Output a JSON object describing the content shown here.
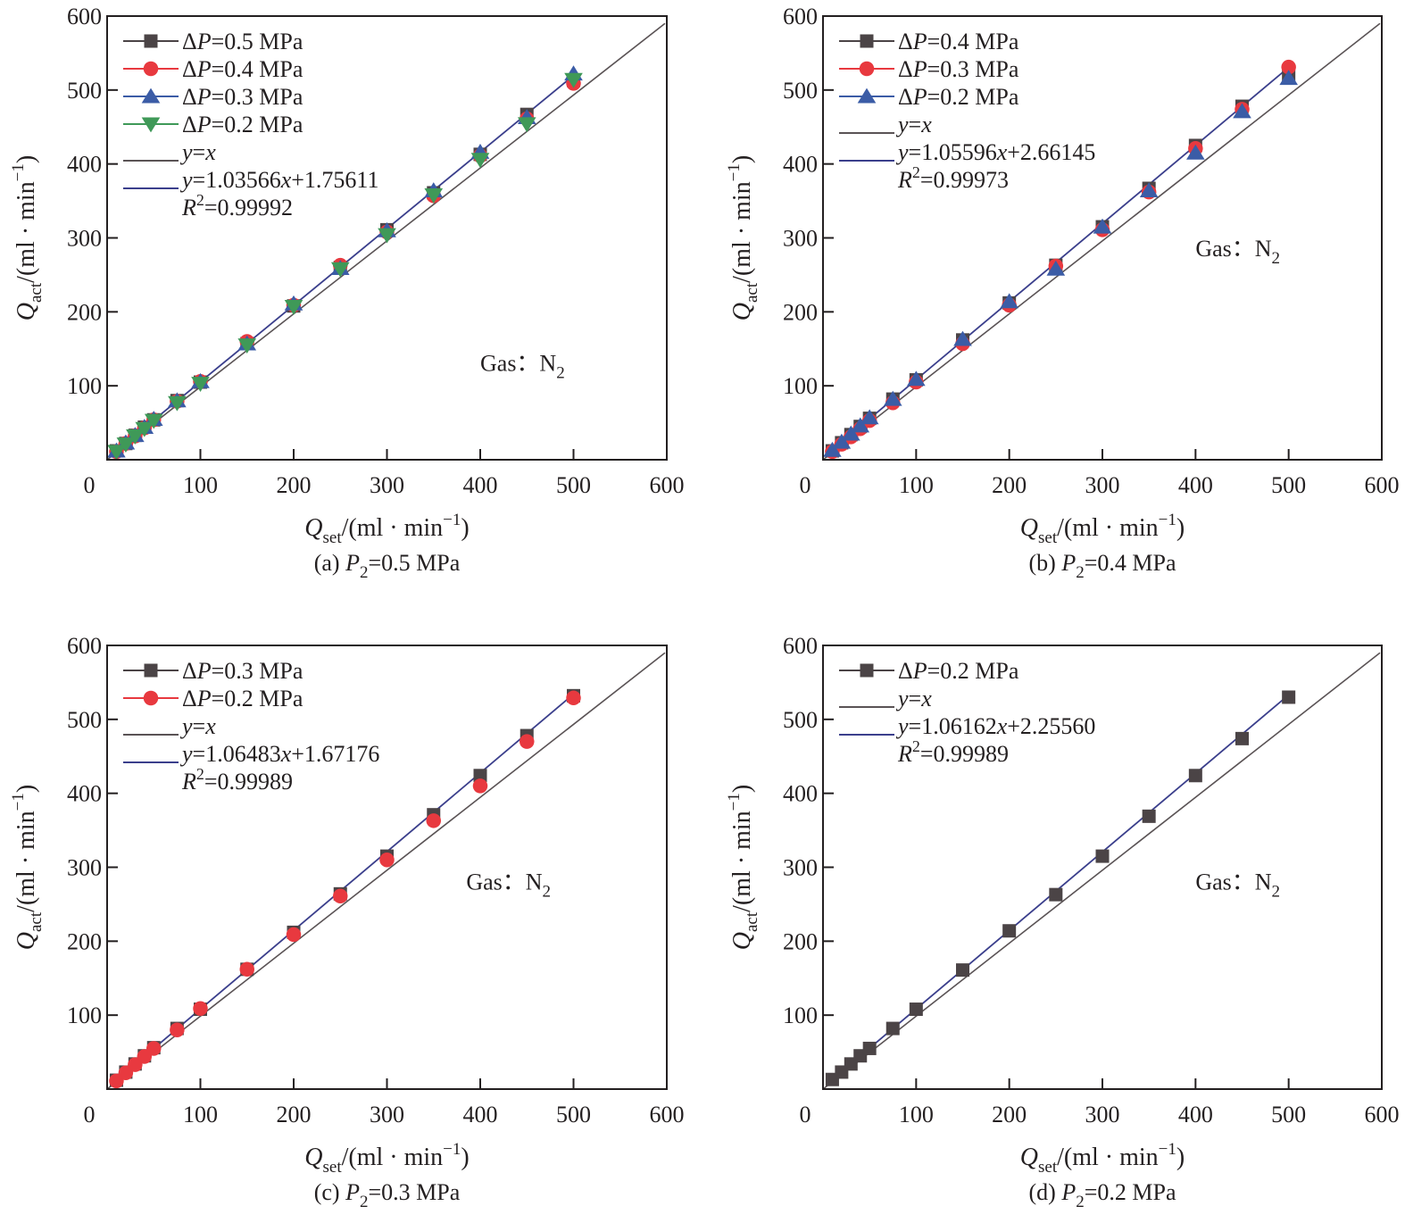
{
  "colors": {
    "series_square": "#4b4446",
    "series_circle": "#e8393f",
    "series_triangle_up": "#3b5ca6",
    "series_triangle_down": "#3f9958",
    "identity_line": "#5a5355",
    "fit_line": "#3b3f8c",
    "axis": "#231f20"
  },
  "chart_data": [
    {
      "type": "scatter",
      "panel": "a",
      "caption": {
        "prefix": "(a) ",
        "var": "P",
        "sub": "2",
        "suffix": "=0.5 MPa"
      },
      "xlabel": {
        "var": "Q",
        "sub": "set",
        "unit": "/(ml · min",
        "sup": "−1",
        "close": ")"
      },
      "ylabel": {
        "var": "Q",
        "sub": "act",
        "unit": "/(ml · min",
        "sup": "−1",
        "close": ")"
      },
      "xlim": [
        0,
        600
      ],
      "ylim": [
        0,
        600
      ],
      "xticks": [
        0,
        100,
        200,
        300,
        400,
        500,
        600
      ],
      "yticks": [
        100,
        200,
        300,
        400,
        500,
        600
      ],
      "grid": false,
      "legend_position": "top-left",
      "annotation": {
        "text": "Gas：N",
        "sub": "2",
        "x": 400,
        "y": 120
      },
      "series": [
        {
          "name": "ΔP=0.5 MPa",
          "marker": "square",
          "x": [
            10,
            20,
            30,
            40,
            50,
            75,
            100,
            150,
            200,
            250,
            300,
            350,
            400,
            450,
            500
          ],
          "y": [
            12,
            22,
            33,
            44,
            54,
            80,
            105,
            157,
            208,
            260,
            311,
            361,
            413,
            467,
            513
          ]
        },
        {
          "name": "ΔP=0.4 MPa",
          "marker": "circle",
          "x": [
            10,
            20,
            30,
            40,
            50,
            75,
            100,
            150,
            200,
            250,
            300,
            350,
            400,
            450,
            500
          ],
          "y": [
            11,
            22,
            32,
            43,
            54,
            79,
            106,
            160,
            209,
            263,
            308,
            357,
            411,
            461,
            509
          ]
        },
        {
          "name": "ΔP=0.3 MPa",
          "marker": "triangle-up",
          "x": [
            10,
            20,
            30,
            40,
            50,
            75,
            100,
            150,
            200,
            250,
            300,
            350,
            400,
            450,
            500
          ],
          "y": [
            12,
            23,
            33,
            44,
            55,
            80,
            106,
            157,
            211,
            259,
            310,
            364,
            416,
            463,
            522
          ]
        },
        {
          "name": "ΔP=0.2 MPa",
          "marker": "triangle-down",
          "x": [
            10,
            20,
            30,
            40,
            50,
            75,
            100,
            150,
            200,
            250,
            300,
            350,
            400,
            450,
            500
          ],
          "y": [
            11,
            21,
            32,
            42,
            53,
            77,
            103,
            155,
            207,
            258,
            304,
            358,
            406,
            454,
            514
          ]
        }
      ],
      "lines": [
        {
          "name": "y=x",
          "kind": "identity",
          "label": {
            "italic": "y",
            "rest": "=",
            "italic2": "x",
            "tail": ""
          }
        },
        {
          "name": "y=1.03566x+1.75611",
          "kind": "fit",
          "slope": 1.03566,
          "intercept": 1.75611,
          "x_range": [
            10,
            500
          ],
          "label": {
            "italic": "y",
            "rest": "=1.03566",
            "italic2": "x",
            "tail": "+1.75611"
          }
        }
      ],
      "r2": {
        "label": "R",
        "sup": "2",
        "value": "=0.99992"
      }
    },
    {
      "type": "scatter",
      "panel": "b",
      "caption": {
        "prefix": "(b) ",
        "var": "P",
        "sub": "2",
        "suffix": "=0.4 MPa"
      },
      "xlabel": {
        "var": "Q",
        "sub": "set",
        "unit": "/(ml · min",
        "sup": "−1",
        "close": ")"
      },
      "ylabel": {
        "var": "Q",
        "sub": "act",
        "unit": "/(ml · min",
        "sup": "−1",
        "close": ")"
      },
      "xlim": [
        0,
        600
      ],
      "ylim": [
        0,
        600
      ],
      "xticks": [
        0,
        100,
        200,
        300,
        400,
        500,
        600
      ],
      "yticks": [
        100,
        200,
        300,
        400,
        500,
        600
      ],
      "grid": false,
      "legend_position": "top-left",
      "annotation": {
        "text": "Gas：N",
        "sub": "2",
        "x": 400,
        "y": 275
      },
      "series": [
        {
          "name": "ΔP=0.4 MPa",
          "marker": "square",
          "x": [
            10,
            20,
            30,
            40,
            50,
            75,
            100,
            150,
            200,
            250,
            300,
            350,
            400,
            450,
            500
          ],
          "y": [
            12,
            23,
            34,
            45,
            56,
            82,
            108,
            162,
            212,
            263,
            315,
            367,
            425,
            478,
            520
          ]
        },
        {
          "name": "ΔP=0.3 MPa",
          "marker": "circle",
          "x": [
            10,
            20,
            30,
            40,
            50,
            75,
            100,
            150,
            200,
            250,
            300,
            350,
            400,
            450,
            500
          ],
          "y": [
            11,
            21,
            31,
            42,
            53,
            77,
            105,
            157,
            209,
            262,
            311,
            362,
            421,
            474,
            531
          ]
        },
        {
          "name": "ΔP=0.2 MPa",
          "marker": "triangle-up",
          "x": [
            10,
            20,
            30,
            40,
            50,
            75,
            100,
            150,
            200,
            250,
            300,
            350,
            400,
            450,
            500
          ],
          "y": [
            13,
            24,
            35,
            46,
            57,
            82,
            109,
            163,
            214,
            258,
            315,
            364,
            415,
            471,
            516
          ]
        }
      ],
      "lines": [
        {
          "name": "y=x",
          "kind": "identity",
          "label": {
            "italic": "y",
            "rest": "=",
            "italic2": "x",
            "tail": ""
          }
        },
        {
          "name": "y=1.05596x+2.66145",
          "kind": "fit",
          "slope": 1.05596,
          "intercept": 2.66145,
          "x_range": [
            10,
            500
          ],
          "label": {
            "italic": "y",
            "rest": "=1.05596",
            "italic2": "x",
            "tail": "+2.66145"
          }
        }
      ],
      "r2": {
        "label": "R",
        "sup": "2",
        "value": "=0.99973"
      }
    },
    {
      "type": "scatter",
      "panel": "c",
      "caption": {
        "prefix": "(c) ",
        "var": "P",
        "sub": "2",
        "suffix": "=0.3 MPa"
      },
      "xlabel": {
        "var": "Q",
        "sub": "set",
        "unit": "/(ml · min",
        "sup": "−1",
        "close": ")"
      },
      "ylabel": {
        "var": "Q",
        "sub": "act",
        "unit": "/(ml · min",
        "sup": "−1",
        "close": ")"
      },
      "xlim": [
        0,
        600
      ],
      "ylim": [
        0,
        600
      ],
      "xticks": [
        0,
        100,
        200,
        300,
        400,
        500,
        600
      ],
      "yticks": [
        100,
        200,
        300,
        400,
        500,
        600
      ],
      "grid": false,
      "legend_position": "top-left",
      "annotation": {
        "text": "Gas：N",
        "sub": "2",
        "x": 385,
        "y": 270
      },
      "series": [
        {
          "name": "ΔP=0.3 MPa",
          "marker": "square",
          "x": [
            10,
            20,
            30,
            40,
            50,
            75,
            100,
            150,
            200,
            250,
            300,
            350,
            400,
            450,
            500
          ],
          "y": [
            12,
            23,
            34,
            45,
            56,
            82,
            108,
            162,
            212,
            264,
            315,
            371,
            424,
            478,
            532
          ]
        },
        {
          "name": "ΔP=0.2 MPa",
          "marker": "circle",
          "x": [
            10,
            20,
            30,
            40,
            50,
            75,
            100,
            150,
            200,
            250,
            300,
            350,
            400,
            450,
            500
          ],
          "y": [
            11,
            22,
            33,
            44,
            55,
            80,
            109,
            162,
            209,
            261,
            310,
            363,
            410,
            470,
            529
          ]
        }
      ],
      "lines": [
        {
          "name": "y=x",
          "kind": "identity",
          "label": {
            "italic": "y",
            "rest": "=",
            "italic2": "x",
            "tail": ""
          }
        },
        {
          "name": "y=1.06483x+1.67176",
          "kind": "fit",
          "slope": 1.06483,
          "intercept": 1.67176,
          "x_range": [
            10,
            500
          ],
          "label": {
            "italic": "y",
            "rest": "=1.06483",
            "italic2": "x",
            "tail": "+1.67176"
          }
        }
      ],
      "r2": {
        "label": "R",
        "sup": "2",
        "value": "=0.99989"
      }
    },
    {
      "type": "scatter",
      "panel": "d",
      "caption": {
        "prefix": "(d) ",
        "var": "P",
        "sub": "2",
        "suffix": "=0.2 MPa"
      },
      "xlabel": {
        "var": "Q",
        "sub": "set",
        "unit": "/(ml · min",
        "sup": "−1",
        "close": ")"
      },
      "ylabel": {
        "var": "Q",
        "sub": "act",
        "unit": "/(ml · min",
        "sup": "−1",
        "close": ")"
      },
      "xlim": [
        0,
        600
      ],
      "ylim": [
        0,
        600
      ],
      "xticks": [
        0,
        100,
        200,
        300,
        400,
        500,
        600
      ],
      "yticks": [
        100,
        200,
        300,
        400,
        500,
        600
      ],
      "grid": false,
      "legend_position": "top-left",
      "annotation": {
        "text": "Gas：N",
        "sub": "2",
        "x": 400,
        "y": 270
      },
      "series": [
        {
          "name": "ΔP=0.2 MPa",
          "marker": "square",
          "x": [
            10,
            20,
            30,
            40,
            50,
            75,
            100,
            150,
            200,
            250,
            300,
            350,
            400,
            450,
            500
          ],
          "y": [
            13,
            23,
            34,
            45,
            55,
            82,
            108,
            161,
            214,
            263,
            315,
            369,
            424,
            474,
            530
          ]
        }
      ],
      "lines": [
        {
          "name": "y=x",
          "kind": "identity",
          "label": {
            "italic": "y",
            "rest": "=",
            "italic2": "x",
            "tail": ""
          }
        },
        {
          "name": "y=1.06162x+2.25560",
          "kind": "fit",
          "slope": 1.06162,
          "intercept": 2.2556,
          "x_range": [
            10,
            500
          ],
          "label": {
            "italic": "y",
            "rest": "=1.06162",
            "italic2": "x",
            "tail": "+2.25560"
          }
        }
      ],
      "r2": {
        "label": "R",
        "sup": "2",
        "value": "=0.99989"
      }
    }
  ]
}
